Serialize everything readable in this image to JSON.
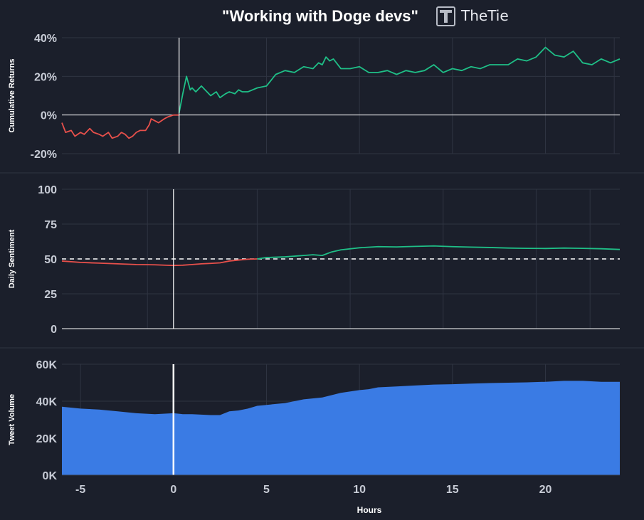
{
  "title": "\"Working with Doge devs\"",
  "brand": {
    "name": "TheTie",
    "logo": "thetie-logo-icon"
  },
  "colors": {
    "background": "#1b1f2b",
    "grid": "#2f3442",
    "negative": "#e8504b",
    "positive": "#1fbf87",
    "volume": "#3a7be4",
    "event_line": "#ffffff"
  },
  "chart_data": [
    {
      "type": "line",
      "ylabel": "Cumulative Returns",
      "ylim": [
        -20,
        40
      ],
      "yticks": [
        40,
        20,
        0,
        -20
      ],
      "ytick_labels": [
        "40%",
        "20%",
        "0%",
        "-20%"
      ],
      "xlim": [
        -6,
        24
      ],
      "event_x": 0.3,
      "series": [
        {
          "color": "negative",
          "x": [
            -6,
            -5.8,
            -5.5,
            -5.3,
            -5,
            -4.8,
            -4.5,
            -4.3,
            -4,
            -3.8,
            -3.5,
            -3.3,
            -3,
            -2.8,
            -2.6,
            -2.4,
            -2.2,
            -2,
            -1.8,
            -1.5,
            -1.3,
            -1.2,
            -1,
            -0.8,
            -0.5,
            -0.3,
            0,
            0.3
          ],
          "values": [
            -4,
            -9,
            -8,
            -11,
            -9,
            -10,
            -7,
            -9,
            -10,
            -11,
            -9,
            -12,
            -11,
            -9,
            -10,
            -12,
            -11,
            -9,
            -8,
            -8,
            -5,
            -2,
            -3,
            -4,
            -2,
            -1,
            0,
            0
          ]
        },
        {
          "color": "positive",
          "x": [
            0.3,
            0.5,
            0.7,
            0.9,
            1,
            1.2,
            1.5,
            1.7,
            2,
            2.3,
            2.5,
            2.8,
            3,
            3.3,
            3.5,
            3.7,
            4,
            4.5,
            5,
            5.5,
            6,
            6.5,
            7,
            7.5,
            7.8,
            8,
            8.2,
            8.4,
            8.6,
            9,
            9.5,
            10,
            10.5,
            11,
            11.5,
            12,
            12.5,
            13,
            13.5,
            14,
            14.5,
            15,
            15.5,
            16,
            16.5,
            17,
            17.5,
            18,
            18.5,
            19,
            19.5,
            20,
            20.5,
            21,
            21.5,
            22,
            22.5,
            23,
            23.5,
            24
          ],
          "values": [
            1,
            11,
            20,
            13,
            14,
            12,
            15,
            13,
            10,
            12,
            9,
            11,
            12,
            11,
            13,
            12,
            12,
            14,
            15,
            21,
            23,
            22,
            25,
            24,
            27,
            26,
            30,
            28,
            29,
            24,
            24,
            25,
            22,
            22,
            23,
            21,
            23,
            22,
            23,
            26,
            22,
            24,
            23,
            25,
            24,
            26,
            26,
            26,
            29,
            28,
            30,
            35,
            31,
            30,
            33,
            27,
            26,
            29,
            27,
            29
          ]
        }
      ]
    },
    {
      "type": "line",
      "ylabel": "Daily Sentiment",
      "ylim": [
        0,
        100
      ],
      "yticks": [
        100,
        75,
        50,
        25,
        0
      ],
      "ytick_labels": [
        "100",
        "75",
        "50",
        "25",
        "0"
      ],
      "xlim": [
        -6,
        24
      ],
      "event_x": 0,
      "reference_line": 50,
      "series": [
        {
          "color": "negative",
          "x": [
            -6,
            -5,
            -4,
            -3,
            -2,
            -1,
            0,
            0.5,
            1,
            1.5,
            2,
            2.5,
            3,
            3.5,
            4,
            4.5
          ],
          "values": [
            48.5,
            47.5,
            47,
            46.5,
            46,
            45.8,
            45.3,
            45.5,
            46,
            46.5,
            46.8,
            47.2,
            48.5,
            49.2,
            49.8,
            50
          ]
        },
        {
          "color": "positive",
          "x": [
            4.5,
            5,
            6,
            7,
            7.5,
            8,
            8.5,
            9,
            10,
            11,
            12,
            13,
            14,
            15,
            16,
            17,
            18,
            19,
            20,
            21,
            22,
            23,
            24
          ],
          "values": [
            50,
            51,
            51.5,
            52.5,
            53,
            52.5,
            55,
            56.5,
            58,
            58.8,
            58.6,
            59,
            59.3,
            58.8,
            58.5,
            58.2,
            57.8,
            57.6,
            57.5,
            57.8,
            57.6,
            57.3,
            56.8
          ]
        }
      ]
    },
    {
      "type": "area",
      "ylabel": "Tweet Volume",
      "xlabel": "Hours",
      "ylim": [
        0,
        60000
      ],
      "yticks": [
        60000,
        40000,
        20000,
        0
      ],
      "ytick_labels": [
        "60K",
        "40K",
        "20K",
        "0K"
      ],
      "xlim": [
        -6,
        24
      ],
      "xticks": [
        -5,
        0,
        5,
        10,
        15,
        20
      ],
      "xtick_labels": [
        "-5",
        "0",
        "5",
        "10",
        "15",
        "20"
      ],
      "event_x": 0,
      "series": [
        {
          "color": "volume",
          "x": [
            -6,
            -5,
            -4,
            -3,
            -2,
            -1,
            0,
            0.5,
            1,
            2,
            2.5,
            3,
            3.5,
            4,
            4.5,
            5,
            5.5,
            6,
            7,
            8,
            9,
            10,
            10.5,
            11,
            12,
            13,
            14,
            15,
            16,
            17,
            18,
            19,
            20,
            21,
            22,
            23,
            24
          ],
          "values": [
            37000,
            36000,
            35500,
            34500,
            33500,
            33000,
            33500,
            33000,
            33000,
            32500,
            32500,
            34500,
            35000,
            36000,
            37500,
            38000,
            38500,
            39000,
            41000,
            42000,
            44500,
            46000,
            46500,
            47500,
            48000,
            48500,
            49000,
            49200,
            49500,
            49800,
            50000,
            50200,
            50500,
            51000,
            51000,
            50500,
            50500
          ]
        }
      ]
    }
  ]
}
